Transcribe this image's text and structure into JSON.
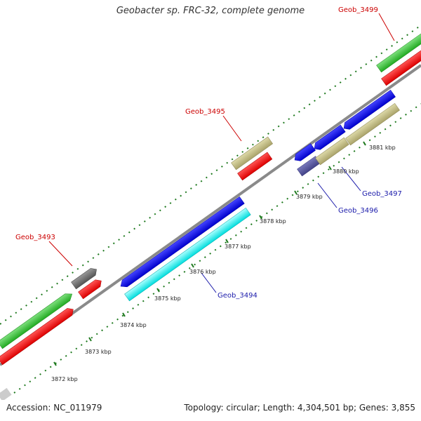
{
  "title": "Geobacter sp. FRC-32, complete genome",
  "footer": {
    "accession_label": "Accession: NC_011979",
    "topology_label": "Topology: circular; Length: 4,304,501 bp; Genes: 3,855"
  },
  "colors": {
    "background": "#ffffff",
    "backbone": "#888888",
    "tick": "#2a7a2a",
    "label_red": "#cc0000",
    "label_blue": "#1a1aaa",
    "label_line_red": "#cc0000",
    "label_line_blue": "#1a1aaa"
  },
  "scale_labels": [
    {
      "text": "3872 kbp",
      "kbp": 3872
    },
    {
      "text": "3873 kbp",
      "kbp": 3873
    },
    {
      "text": "3874 kbp",
      "kbp": 3874
    },
    {
      "text": "3875 kbp",
      "kbp": 3875
    },
    {
      "text": "3876 kbp",
      "kbp": 3876
    },
    {
      "text": "3877 kbp",
      "kbp": 3877
    },
    {
      "text": "3878 kbp",
      "kbp": 3878
    },
    {
      "text": "3879 kbp",
      "kbp": 3879
    },
    {
      "text": "3880 kbp",
      "kbp": 3880
    },
    {
      "text": "3881 kbp",
      "kbp": 3881
    }
  ],
  "gene_labels": [
    {
      "text": "Geob_3499",
      "color": "red"
    },
    {
      "text": "Geob_3495",
      "color": "red"
    },
    {
      "text": "Geob_3493",
      "color": "red"
    },
    {
      "text": "Geob_3497",
      "color": "blue"
    },
    {
      "text": "Geob_3496",
      "color": "blue"
    },
    {
      "text": "Geob_3494",
      "color": "blue"
    }
  ]
}
